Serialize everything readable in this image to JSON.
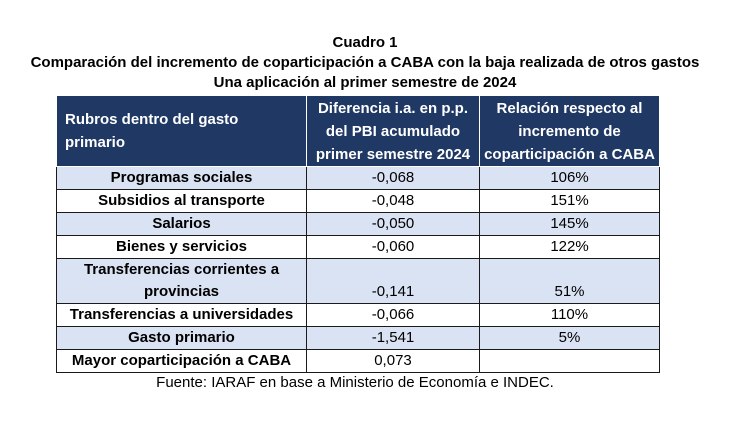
{
  "title": {
    "line1": "Cuadro 1",
    "line2": "Comparación del incremento de coparticipación a CABA con la baja realizada de otros gastos",
    "line3": "Una aplicación al primer semestre de 2024"
  },
  "table": {
    "headers": [
      "Rubros dentro del gasto primario",
      "Diferencia i.a. en p.p. del PBI acumulado primer semestre 2024",
      "Relación respecto al incremento de coparticipación a CABA"
    ],
    "rows": [
      {
        "label": "Programas sociales",
        "diff": "-0,068",
        "rel": "106%"
      },
      {
        "label": "Subsidios al transporte",
        "diff": "-0,048",
        "rel": "151%"
      },
      {
        "label": "Salarios",
        "diff": "-0,050",
        "rel": "145%"
      },
      {
        "label": "Bienes y servicios",
        "diff": "-0,060",
        "rel": "122%"
      },
      {
        "label": "Transferencias corrientes a provincias",
        "diff": "-0,141",
        "rel": "51%"
      },
      {
        "label": "Transferencias a universidades",
        "diff": "-0,066",
        "rel": "110%"
      },
      {
        "label": "Gasto primario",
        "diff": "-1,541",
        "rel": "5%"
      },
      {
        "label": "Mayor coparticipación a CABA",
        "diff": "0,073",
        "rel": ""
      }
    ]
  },
  "source": "Fuente: IARAF en base a Ministerio de Economía e INDEC.",
  "colors": {
    "header_bg": "#1f3864",
    "shaded_row": "#dae3f3"
  }
}
